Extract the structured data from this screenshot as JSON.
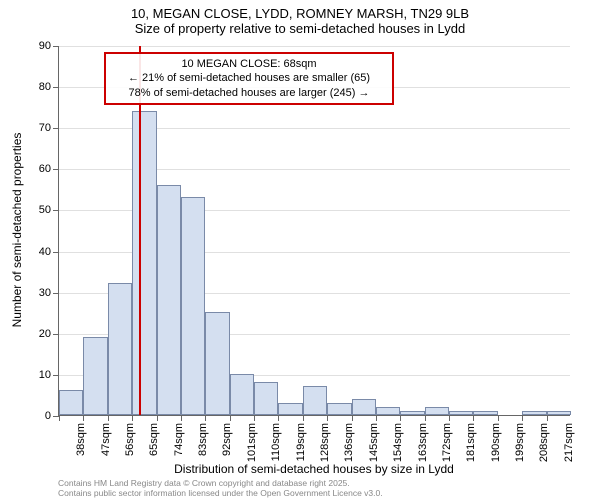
{
  "title_line1": "10, MEGAN CLOSE, LYDD, ROMNEY MARSH, TN29 9LB",
  "title_line2": "Size of property relative to semi-detached houses in Lydd",
  "chart": {
    "type": "histogram",
    "ylabel": "Number of semi-detached properties",
    "xlabel": "Distribution of semi-detached houses by size in Lydd",
    "ylim": [
      0,
      90
    ],
    "ytick_step": 10,
    "background_color": "#ffffff",
    "grid_color": "#e0e0e0",
    "axis_color": "#666666",
    "bar_fill": "#d4dff0",
    "bar_border": "#7a8aa8",
    "label_fontsize": 12,
    "tick_fontsize": 11,
    "categories": [
      "38sqm",
      "47sqm",
      "56sqm",
      "65sqm",
      "74sqm",
      "83sqm",
      "92sqm",
      "101sqm",
      "110sqm",
      "119sqm",
      "128sqm",
      "136sqm",
      "145sqm",
      "154sqm",
      "163sqm",
      "172sqm",
      "181sqm",
      "190sqm",
      "199sqm",
      "208sqm",
      "217sqm"
    ],
    "values": [
      6,
      19,
      32,
      74,
      56,
      53,
      25,
      10,
      8,
      3,
      7,
      3,
      4,
      2,
      1,
      2,
      1,
      1,
      0,
      1,
      1
    ],
    "marker": {
      "color": "#cc0000",
      "position_index": 3.3,
      "callout_border": "#cc0000",
      "callout_lines": [
        "10 MEGAN CLOSE: 68sqm",
        "← 21% of semi-detached houses are smaller (65)",
        "78% of semi-detached houses are larger (245) →"
      ]
    }
  },
  "footer_line1": "Contains HM Land Registry data © Crown copyright and database right 2025.",
  "footer_line2": "Contains public sector information licensed under the Open Government Licence v3.0."
}
